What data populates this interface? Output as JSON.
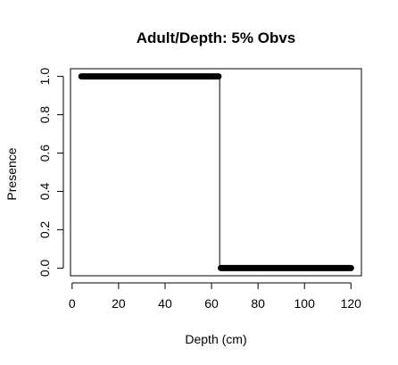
{
  "chart_data": {
    "type": "line",
    "title": "Adult/Depth: 5% Obvs",
    "xlabel": "Depth (cm)",
    "ylabel": "Presence",
    "xlim": [
      -0.7,
      124.5
    ],
    "ylim": [
      -0.04,
      1.04
    ],
    "xticks": [
      0,
      20,
      40,
      60,
      80,
      100,
      120
    ],
    "yticks": [
      0.0,
      0.2,
      0.4,
      0.6,
      0.8,
      1.0
    ],
    "xtick_labels": [
      "0",
      "20",
      "40",
      "60",
      "80",
      "100",
      "120"
    ],
    "ytick_labels": [
      "0.0",
      "0.2",
      "0.4",
      "0.6",
      "0.8",
      "1.0"
    ],
    "grid": false,
    "colors": {
      "line": "#000000",
      "points": "#000000"
    },
    "series": [
      {
        "kind": "step_line",
        "x": [
          4,
          63.5,
          63.5,
          120
        ],
        "y": [
          1,
          1,
          0,
          0
        ]
      },
      {
        "kind": "point_segments",
        "segments": [
          {
            "x_from": 4,
            "x_to": 63,
            "y": 1
          },
          {
            "x_from": 64,
            "x_to": 120,
            "y": 0
          }
        ]
      }
    ]
  }
}
